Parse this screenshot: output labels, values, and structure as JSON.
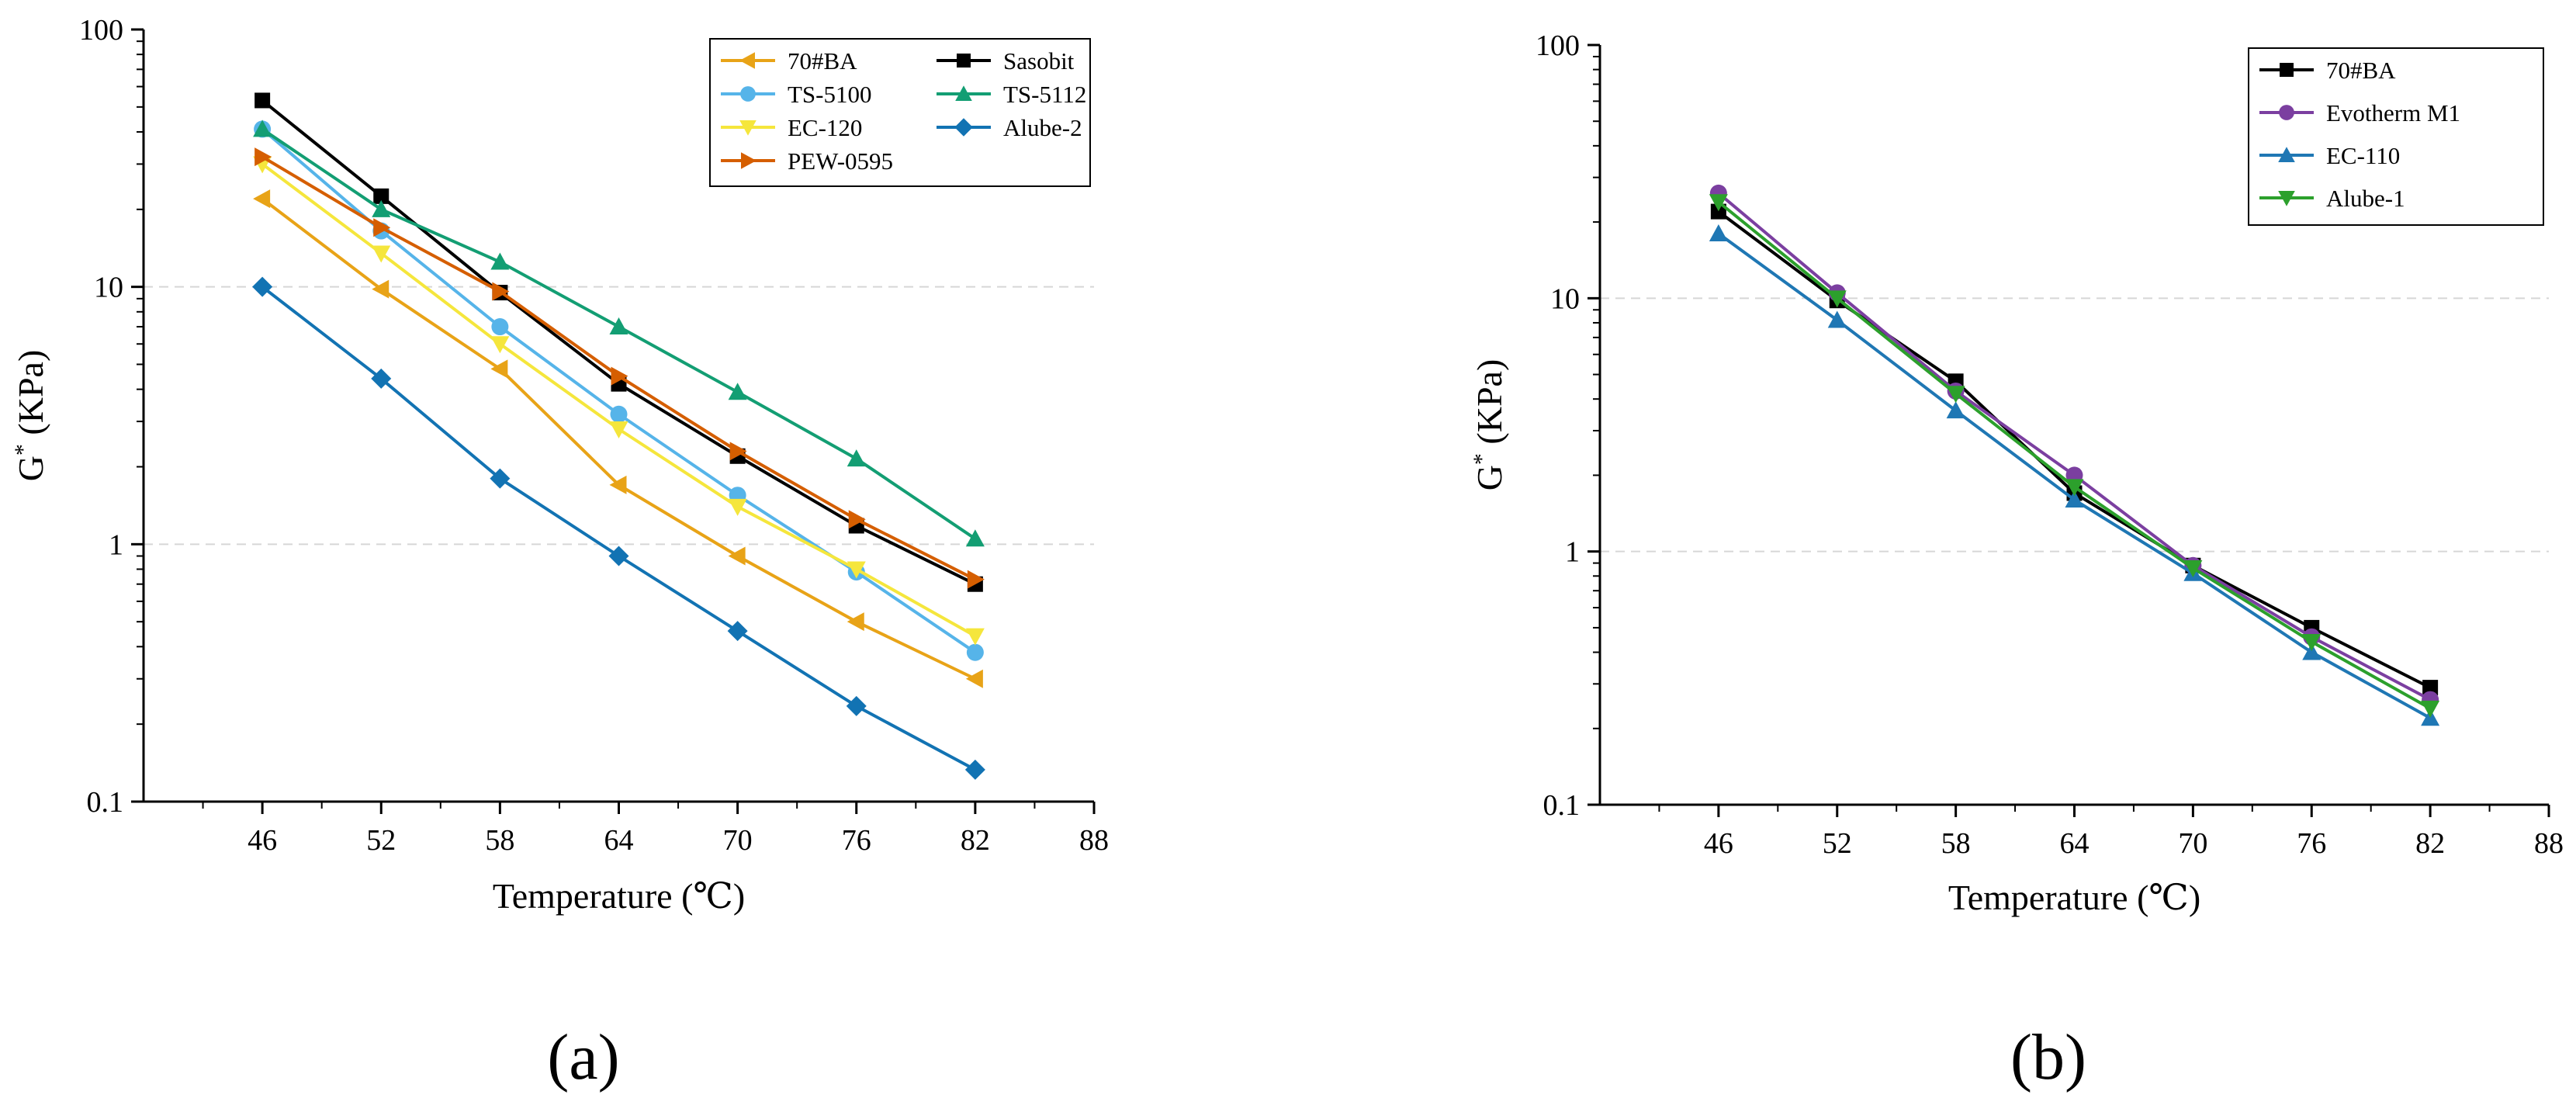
{
  "chart_data": [
    {
      "type": "line",
      "panel_label": "(a)",
      "xlabel": "Temperature (℃)",
      "ylabel": "G* (KPa)",
      "y_scale": "log",
      "xlim": [
        40,
        88
      ],
      "ylim": [
        0.1,
        100
      ],
      "x_ticks": [
        46,
        52,
        58,
        64,
        70,
        76,
        82,
        88
      ],
      "y_ticks": [
        0.1,
        1,
        10,
        100
      ],
      "y_tick_labels": [
        "0.1",
        "1",
        "10",
        "100"
      ],
      "grid": "horizontal dashed at decades",
      "legend": "top-right",
      "x": [
        46,
        52,
        58,
        64,
        70,
        76,
        82
      ],
      "series": [
        {
          "name": "70#BA",
          "color": "#E8A317",
          "marker": "triangle-left",
          "values": [
            22,
            9.8,
            4.8,
            1.7,
            0.9,
            0.5,
            0.3
          ]
        },
        {
          "name": "Sasobit",
          "color": "#000000",
          "marker": "square",
          "values": [
            53,
            22.5,
            9.5,
            4.2,
            2.2,
            1.18,
            0.7
          ]
        },
        {
          "name": "TS-5100",
          "color": "#56B4E9",
          "marker": "circle",
          "values": [
            41,
            16.5,
            7.0,
            3.2,
            1.55,
            0.78,
            0.38
          ]
        },
        {
          "name": "TS-5112",
          "color": "#139E73",
          "marker": "triangle-up",
          "values": [
            41,
            20,
            12.5,
            7.0,
            3.9,
            2.15,
            1.05
          ]
        },
        {
          "name": "EC-120",
          "color": "#F5E63C",
          "marker": "triangle-down",
          "values": [
            30,
            13.5,
            6.0,
            2.8,
            1.4,
            0.8,
            0.44
          ]
        },
        {
          "name": "Alube-2",
          "color": "#1273B3",
          "marker": "diamond",
          "values": [
            10,
            4.4,
            1.8,
            0.9,
            0.46,
            0.235,
            0.133
          ]
        },
        {
          "name": "PEW-0595",
          "color": "#D55E00",
          "marker": "triangle-right",
          "values": [
            32,
            17,
            9.6,
            4.5,
            2.3,
            1.25,
            0.73
          ]
        }
      ]
    },
    {
      "type": "line",
      "panel_label": "(b)",
      "xlabel": "Temperature (℃)",
      "ylabel": "G* (KPa)",
      "y_scale": "log",
      "xlim": [
        40,
        88
      ],
      "ylim": [
        0.1,
        100
      ],
      "x_ticks": [
        46,
        52,
        58,
        64,
        70,
        76,
        82,
        88
      ],
      "y_ticks": [
        0.1,
        1,
        10,
        100
      ],
      "y_tick_labels": [
        "0.1",
        "1",
        "10",
        "100"
      ],
      "grid": "horizontal dashed at decades",
      "legend": "top-right",
      "x": [
        46,
        52,
        58,
        64,
        70,
        76,
        82
      ],
      "series": [
        {
          "name": "70#BA",
          "color": "#000000",
          "marker": "square",
          "values": [
            22,
            9.8,
            4.7,
            1.7,
            0.88,
            0.5,
            0.29
          ]
        },
        {
          "name": "Evotherm M1",
          "color": "#7B3FA0",
          "marker": "circle",
          "values": [
            26,
            10.5,
            4.3,
            2.0,
            0.88,
            0.46,
            0.26
          ]
        },
        {
          "name": "EC-110",
          "color": "#1F77B4",
          "marker": "triangle-up",
          "values": [
            18,
            8.2,
            3.6,
            1.6,
            0.82,
            0.4,
            0.22
          ]
        },
        {
          "name": "Alube-1",
          "color": "#2CA02C",
          "marker": "triangle-down",
          "values": [
            24,
            10,
            4.2,
            1.8,
            0.86,
            0.44,
            0.24
          ]
        }
      ]
    }
  ]
}
